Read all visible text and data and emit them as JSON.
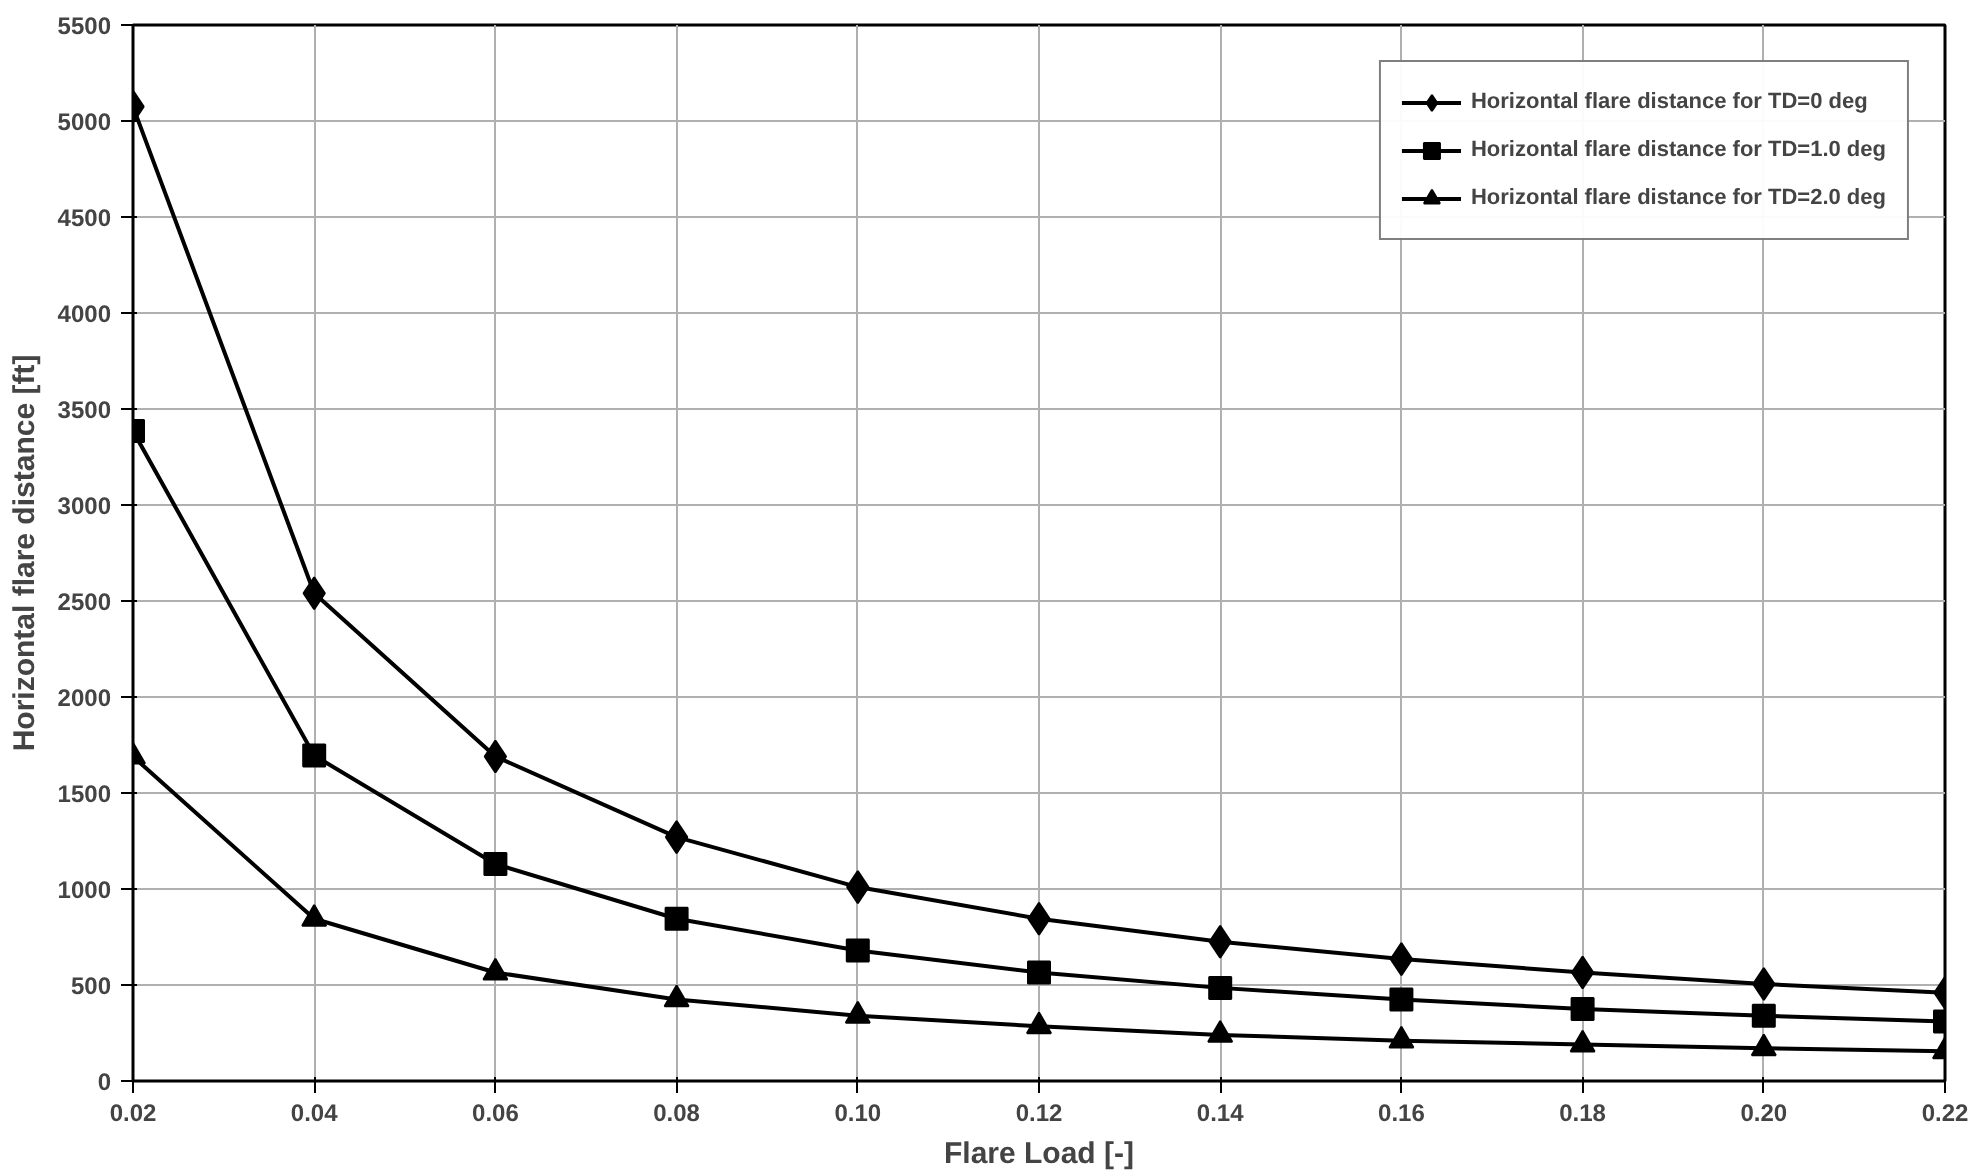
{
  "chart_data": {
    "type": "line",
    "xlabel": "Flare Load [-]",
    "ylabel": "Horizontal flare distance [ft]",
    "x": [
      0.02,
      0.04,
      0.06,
      0.08,
      0.1,
      0.12,
      0.14,
      0.16,
      0.18,
      0.2,
      0.22
    ],
    "xlim": [
      0.02,
      0.22
    ],
    "xticks": [
      {
        "value": 0.02,
        "label": "0.02"
      },
      {
        "value": 0.04,
        "label": "0.04"
      },
      {
        "value": 0.06,
        "label": "0.06"
      },
      {
        "value": 0.08,
        "label": "0.08"
      },
      {
        "value": 0.1,
        "label": "0.10"
      },
      {
        "value": 0.12,
        "label": "0.12"
      },
      {
        "value": 0.14,
        "label": "0.14"
      },
      {
        "value": 0.16,
        "label": "0.16"
      },
      {
        "value": 0.18,
        "label": "0.18"
      },
      {
        "value": 0.2,
        "label": "0.20"
      },
      {
        "value": 0.22,
        "label": "0.22"
      }
    ],
    "ylim": [
      0,
      5500
    ],
    "yticks": [
      0,
      500,
      1000,
      1500,
      2000,
      2500,
      3000,
      3500,
      4000,
      4500,
      5000,
      5500
    ],
    "grid": true,
    "legend": "top right",
    "line_style": "solid",
    "series": [
      {
        "name": "Horizontal flare distance for TD=0 deg",
        "color": "#000000",
        "marker": "diamond",
        "values": [
          5075,
          2540,
          1690,
          1270,
          1010,
          845,
          725,
          635,
          565,
          505,
          460
        ]
      },
      {
        "name": "Horizontal flare distance for TD=1.0 deg",
        "color": "#000000",
        "marker": "square",
        "values": [
          3385,
          1695,
          1130,
          845,
          680,
          565,
          485,
          425,
          375,
          340,
          310
        ]
      },
      {
        "name": "Horizontal flare distance for TD=2.0 deg",
        "color": "#000000",
        "marker": "triangle",
        "values": [
          1690,
          845,
          565,
          425,
          340,
          285,
          240,
          210,
          190,
          170,
          155
        ]
      }
    ]
  }
}
